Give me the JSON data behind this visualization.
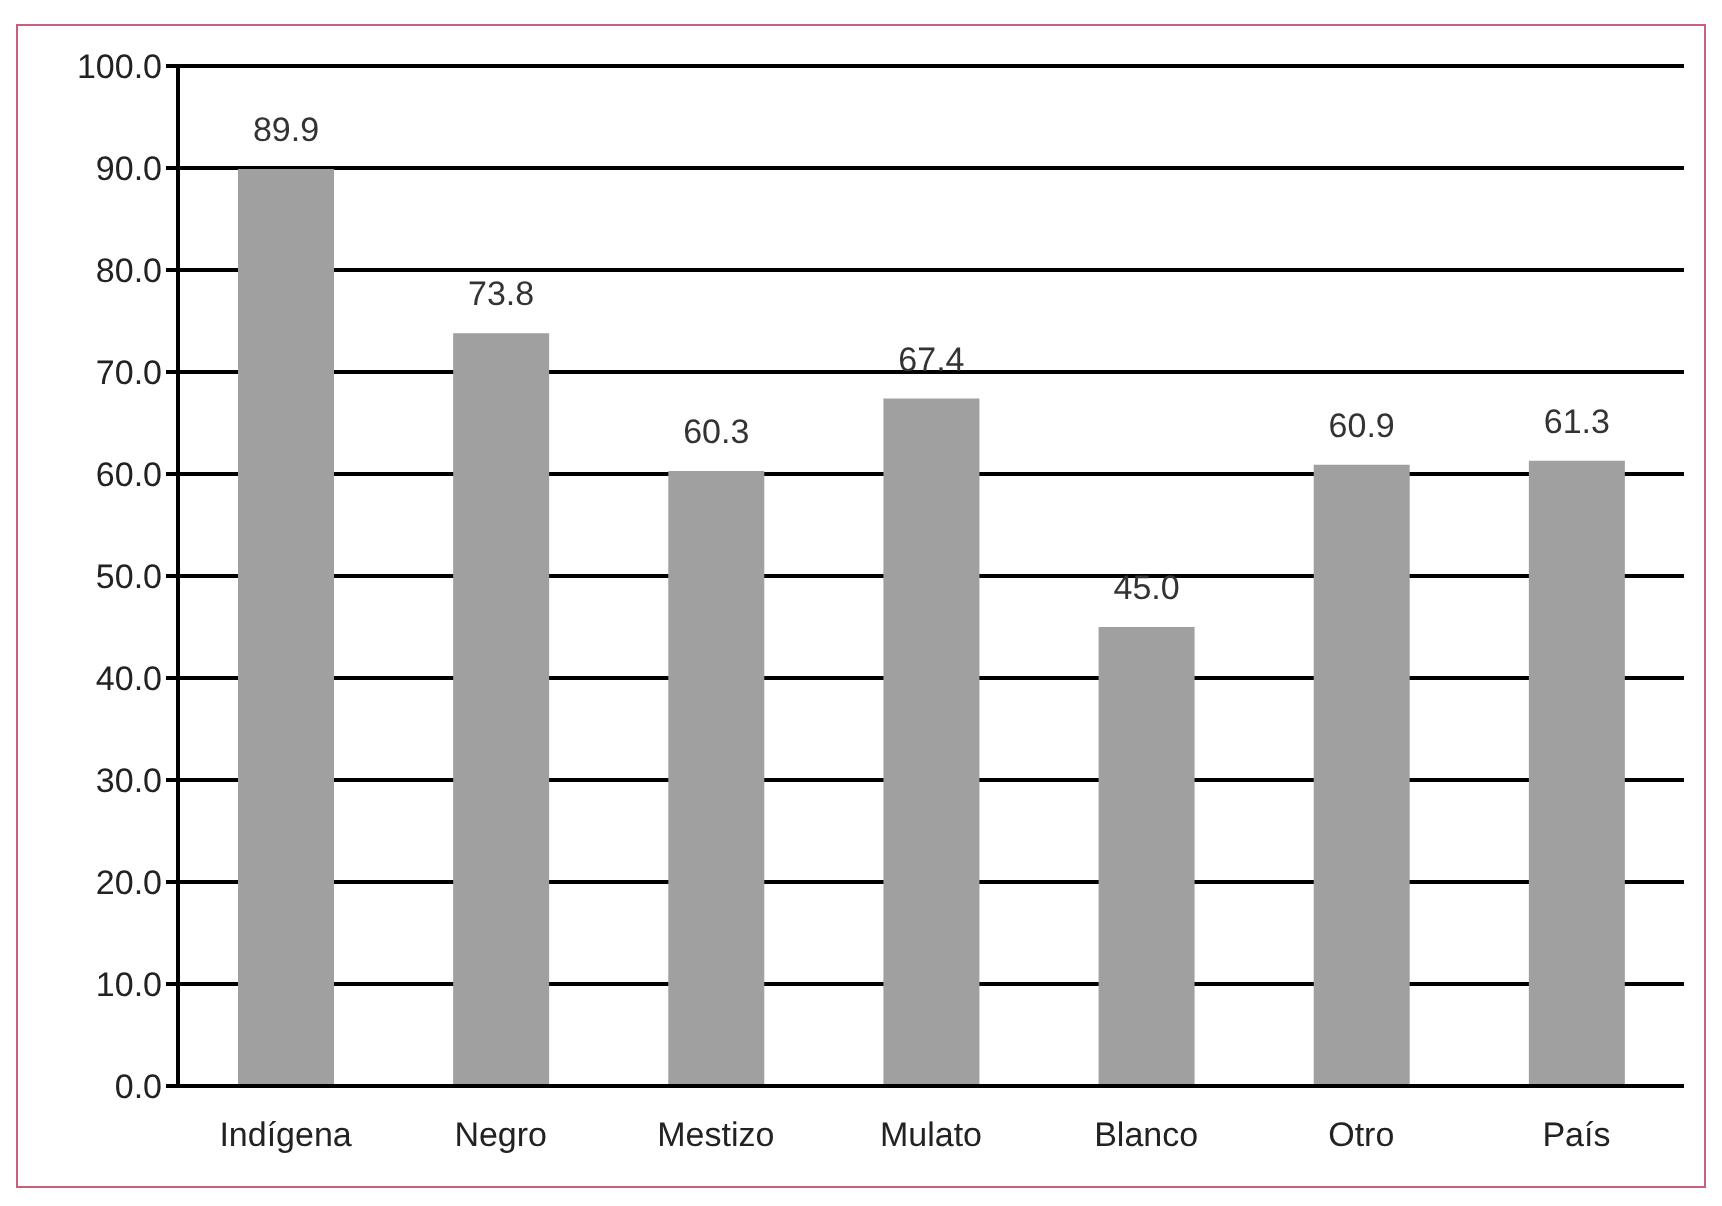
{
  "chart_data": {
    "type": "bar",
    "categories": [
      "Indígena",
      "Negro",
      "Mestizo",
      "Mulato",
      "Blanco",
      "Otro",
      "País"
    ],
    "values": [
      89.9,
      73.8,
      60.3,
      67.4,
      45.0,
      60.9,
      61.3
    ],
    "value_labels": [
      "89.9",
      "73.8",
      "60.3",
      "67.4",
      "45.0",
      "60.9",
      "61.3"
    ],
    "color": "#a0a0a0",
    "ylim": [
      0,
      100
    ],
    "yticks": [
      {
        "value": 0,
        "label": "0.0"
      },
      {
        "value": 10,
        "label": "10.0"
      },
      {
        "value": 20,
        "label": "20.0"
      },
      {
        "value": 30,
        "label": "30.0"
      },
      {
        "value": 40,
        "label": "40.0"
      },
      {
        "value": 50,
        "label": "50.0"
      },
      {
        "value": 60,
        "label": "60.0"
      },
      {
        "value": 70,
        "label": "70.0"
      },
      {
        "value": 80,
        "label": "80.0"
      },
      {
        "value": 90,
        "label": "90.0"
      },
      {
        "value": 100,
        "label": "100.0"
      }
    ],
    "grid": "y"
  }
}
